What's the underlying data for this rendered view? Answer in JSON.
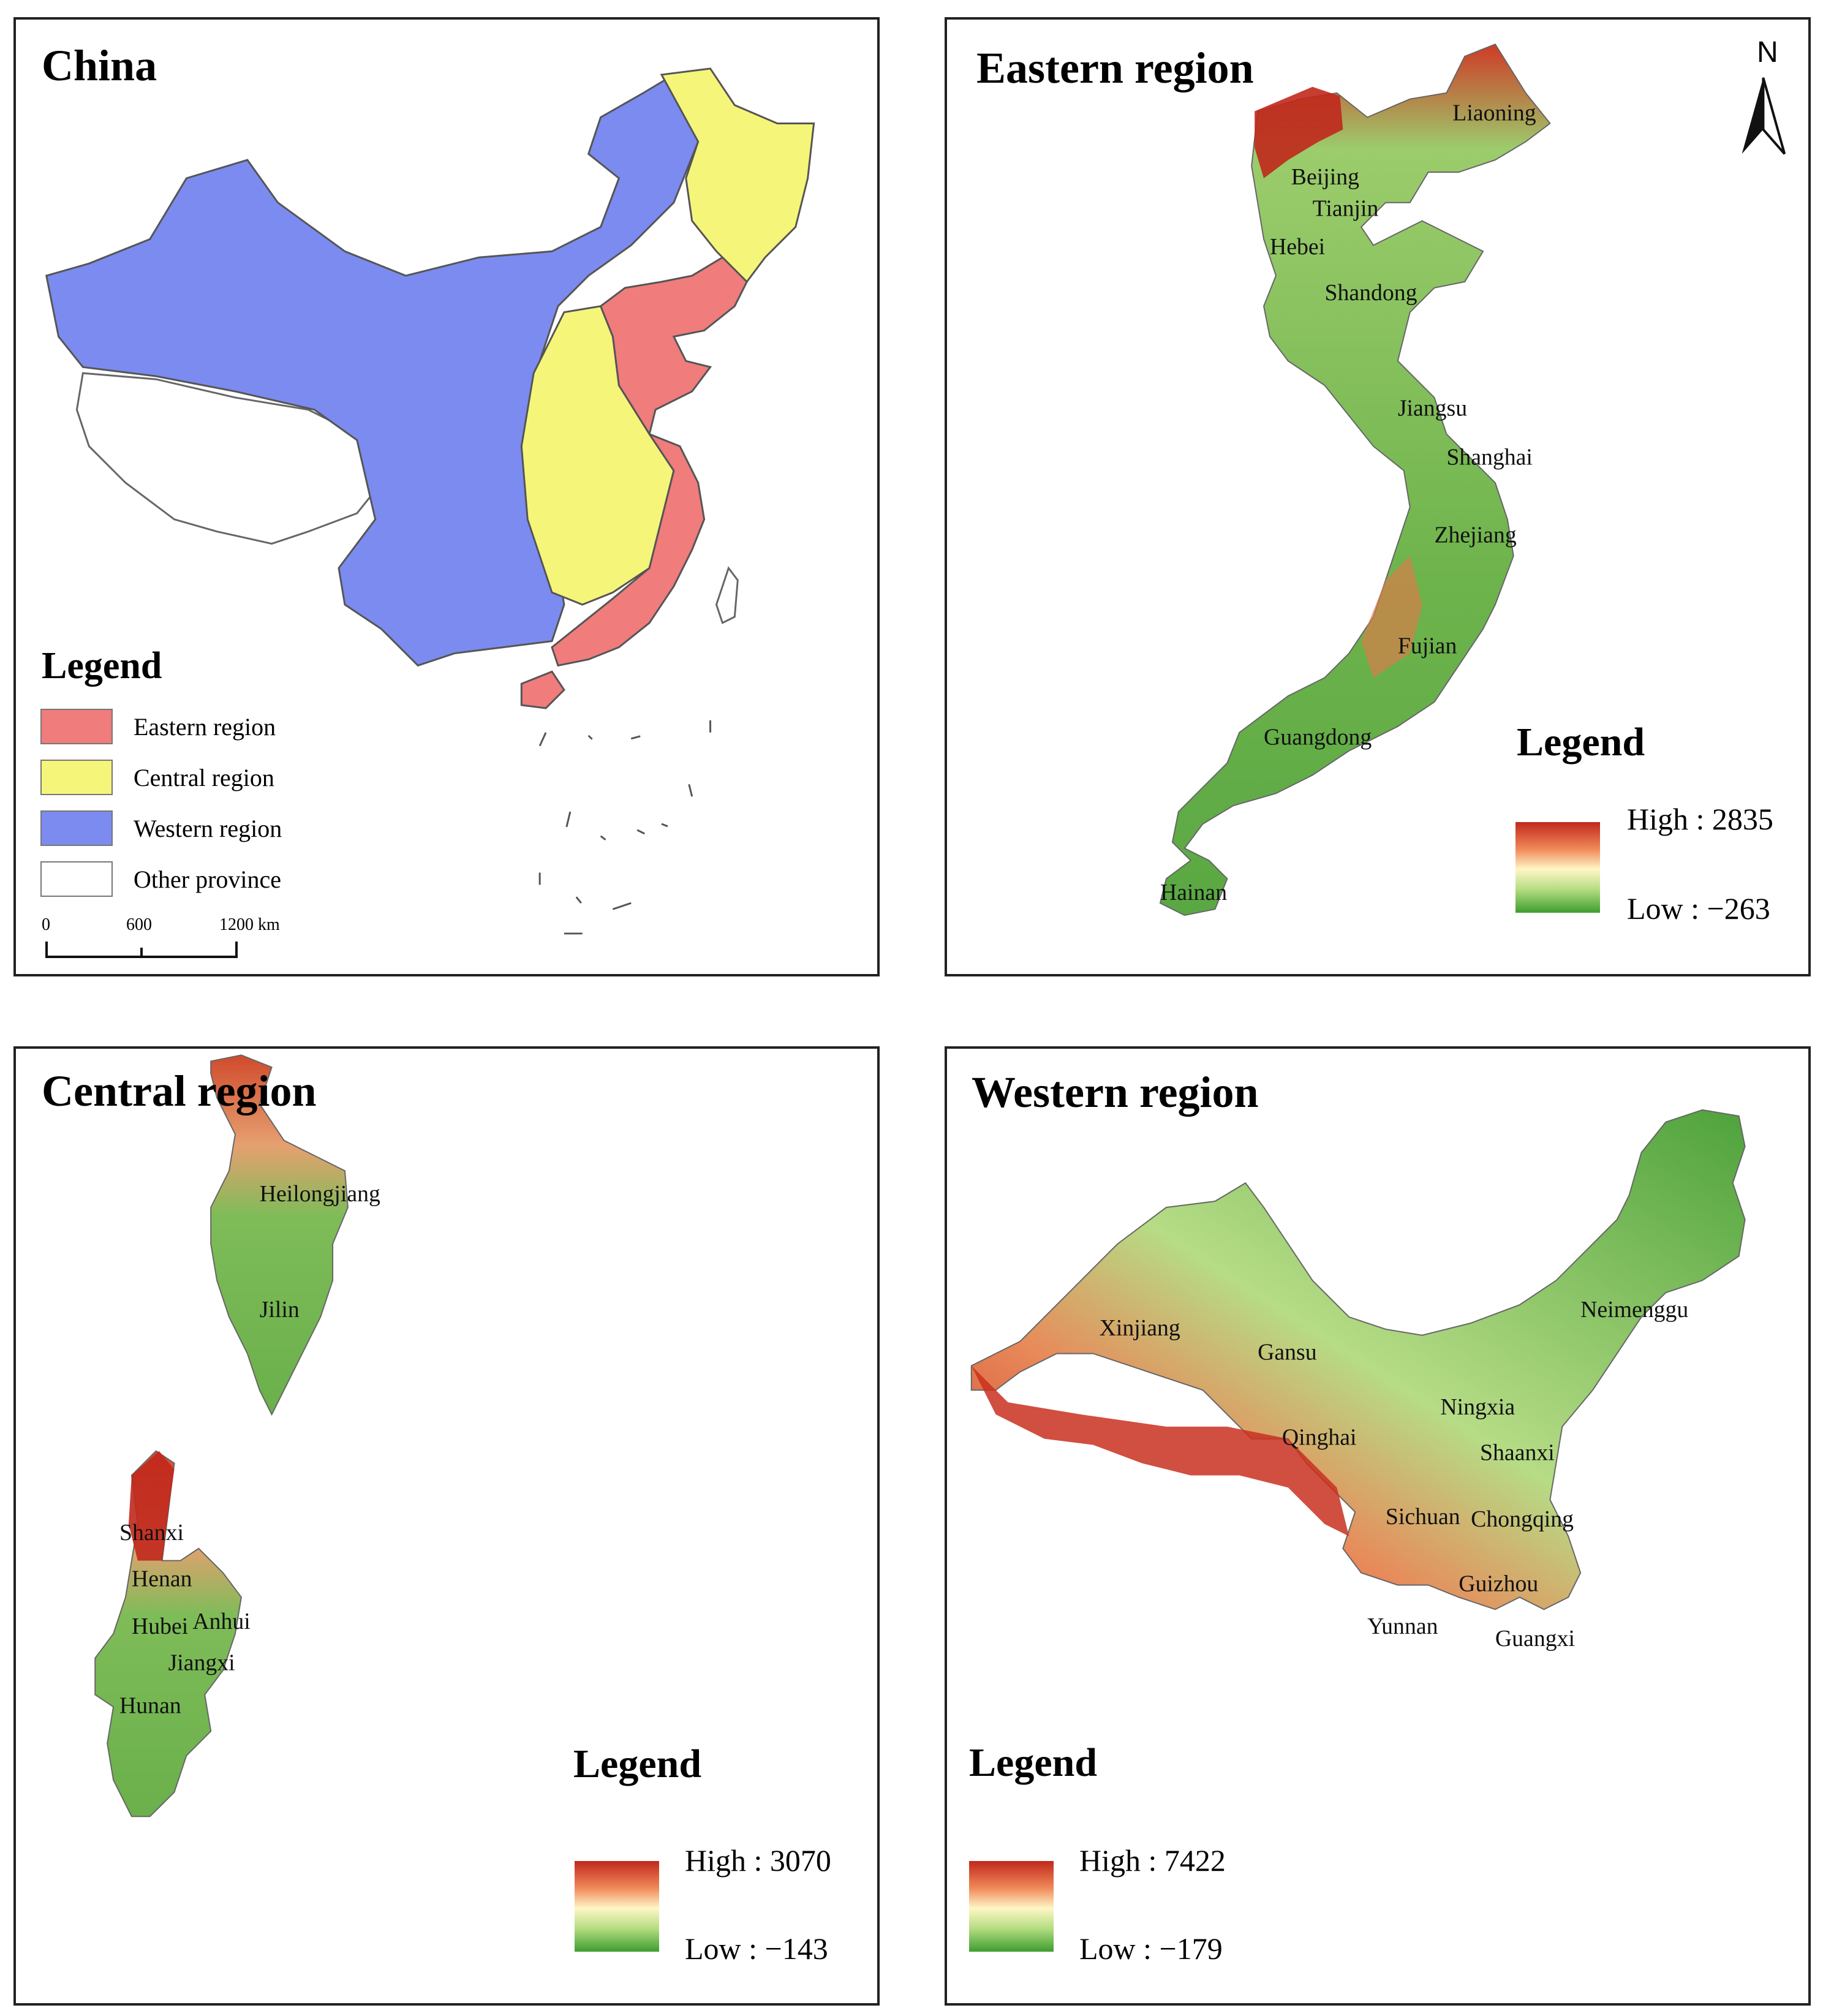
{
  "china": {
    "title": "China",
    "legend_heading": "Legend",
    "legend_items": [
      {
        "label": "Eastern region",
        "color": "#f07c7c"
      },
      {
        "label": "Central region",
        "color": "#f5f57a"
      },
      {
        "label": "Western region",
        "color": "#7b8bf0"
      },
      {
        "label": "Other province",
        "color": "#ffffff"
      }
    ],
    "scale": {
      "ticks": [
        "0",
        "600",
        "1200 km"
      ]
    }
  },
  "eastern": {
    "title": "Eastern region",
    "north_arrow": "N",
    "legend_heading": "Legend",
    "high": "High : 2835",
    "low": "Low : −263",
    "provinces": [
      "Liaoning",
      "Beijing",
      "Tianjin",
      "Hebei",
      "Shandong",
      "Jiangsu",
      "Shanghai",
      "Zhejiang",
      "Fujian",
      "Guangdong",
      "Hainan"
    ]
  },
  "central": {
    "title": "Central region",
    "legend_heading": "Legend",
    "high": "High : 3070",
    "low": "Low : −143",
    "provinces": [
      "Heilongjiang",
      "Jilin",
      "Shanxi",
      "Henan",
      "Hubei",
      "Anhui",
      "Jiangxi",
      "Hunan"
    ]
  },
  "western": {
    "title": "Western region",
    "legend_heading": "Legend",
    "high": "High : 7422",
    "low": "Low : −179",
    "provinces": [
      "Xinjiang",
      "Neimenggu",
      "Gansu",
      "Ningxia",
      "Qinghai",
      "Shaanxi",
      "Sichuan",
      "Chongqing",
      "Guizhou",
      "Yunnan",
      "Guangxi"
    ]
  },
  "colors": {
    "elev_high": "#c0281c",
    "elev_mid": "#fff6c6",
    "elev_low": "#3e9d30"
  }
}
